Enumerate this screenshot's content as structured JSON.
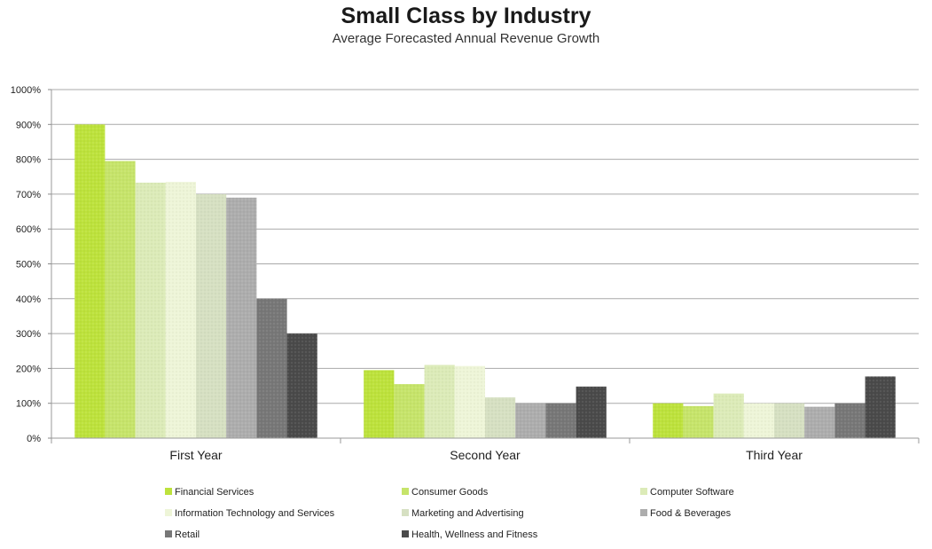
{
  "chart_data": {
    "type": "bar",
    "title": "Small Class by Industry",
    "subtitle": "Average Forecasted Annual Revenue Growth",
    "xlabel": "",
    "ylabel": "",
    "ylim": [
      0,
      1000
    ],
    "y_ticks": [
      0,
      100,
      200,
      300,
      400,
      500,
      600,
      700,
      800,
      900,
      1000
    ],
    "y_tick_labels": [
      "0%",
      "100%",
      "200%",
      "300%",
      "400%",
      "500%",
      "600%",
      "700%",
      "800%",
      "900%",
      "1000%"
    ],
    "grid": true,
    "legend_position": "bottom",
    "categories": [
      "First Year",
      "Second Year",
      "Third Year"
    ],
    "series": [
      {
        "name": "Financial Services",
        "color": "#bde23c",
        "values": [
          900,
          195,
          100
        ]
      },
      {
        "name": "Consumer Goods",
        "color": "#c6e46a",
        "values": [
          795,
          155,
          92
        ]
      },
      {
        "name": "Computer Software",
        "color": "#dcebb8",
        "values": [
          733,
          210,
          128
        ]
      },
      {
        "name": "Information Technology and Services",
        "color": "#eef5d8",
        "values": [
          735,
          207,
          100
        ]
      },
      {
        "name": "Marketing and Advertising",
        "color": "#d6e0c2",
        "values": [
          700,
          117,
          100
        ]
      },
      {
        "name": "Food & Beverages",
        "color": "#adadad",
        "values": [
          690,
          100,
          90
        ]
      },
      {
        "name": "Retail",
        "color": "#777777",
        "values": [
          400,
          100,
          100
        ]
      },
      {
        "name": "Health, Wellness and Fitness",
        "color": "#4a4a4a",
        "values": [
          300,
          148,
          177
        ]
      }
    ]
  }
}
